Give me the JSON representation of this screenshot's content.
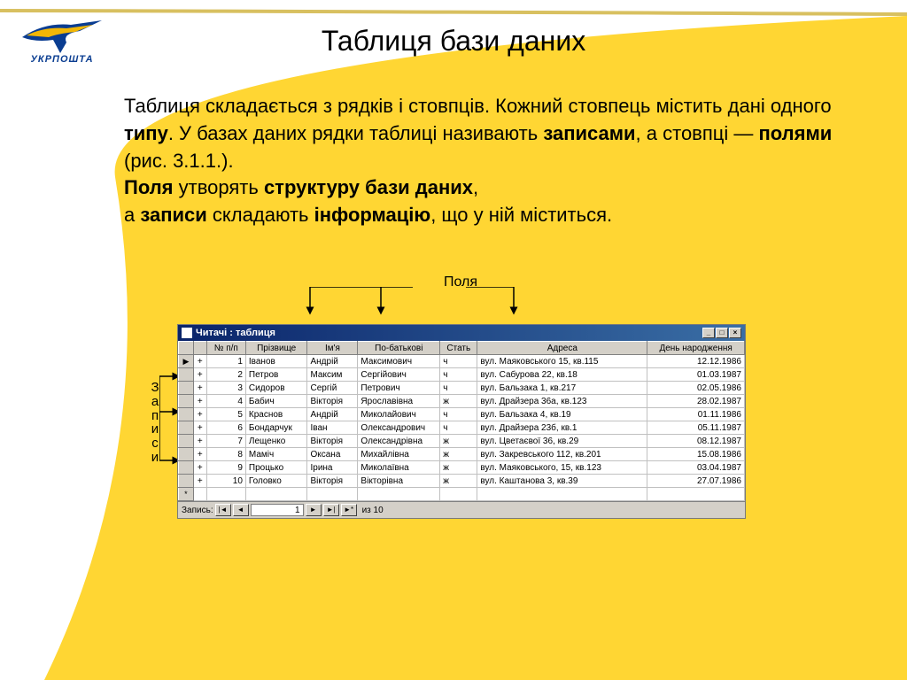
{
  "colors": {
    "yellow": "#ffd633",
    "blue_logo": "#0a3d91",
    "yellow_logo": "#f2b705",
    "titlebar_left": "#0a246a",
    "titlebar_right": "#3a6ea5",
    "window_bg": "#d4d0c8",
    "grid_border": "#c0c0c0"
  },
  "logo_text": "УКРПОШТА",
  "title": "Таблиця бази даних",
  "body": {
    "p1a": "Таблиця складається з рядків і стовпців. Кожний стовпець містить дані одного ",
    "p1b": "типу",
    "p1c": ". У базах даних рядки таблиці називають ",
    "p1d": "записами",
    "p1e": ", а стовпці — ",
    "p1f": "полями",
    "p1g": " (рис. 3.1.1.).",
    "p2a": "Поля",
    "p2b": " утворять ",
    "p2c": "структуру бази даних",
    "p2d": ",",
    "p3a": "а ",
    "p3b": "записи",
    "p3c": " складають ",
    "p3d": "інформацію",
    "p3e": ", що у ній міститься."
  },
  "labels": {
    "fields": "Поля",
    "records": "Записи"
  },
  "window": {
    "title": "Читачі : таблиця",
    "min": "_",
    "max": "□",
    "close": "×"
  },
  "columns": {
    "num": "№ п/п",
    "last": "Прізвище",
    "first": "Ім'я",
    "patronymic": "По-батькові",
    "sex": "Стать",
    "address": "Адреса",
    "birthday": "День народження"
  },
  "rows": [
    {
      "n": "1",
      "last": "Іванов",
      "first": "Андрій",
      "pat": "Максимович",
      "sex": "ч",
      "addr": "вул. Маяковського 15, кв.115",
      "bday": "12.12.1986"
    },
    {
      "n": "2",
      "last": "Петров",
      "first": "Максим",
      "pat": "Сергійович",
      "sex": "ч",
      "addr": "вул. Сабурова 22, кв.18",
      "bday": "01.03.1987"
    },
    {
      "n": "3",
      "last": "Сидоров",
      "first": "Сергій",
      "pat": "Петрович",
      "sex": "ч",
      "addr": "вул. Бальзака 1, кв.217",
      "bday": "02.05.1986"
    },
    {
      "n": "4",
      "last": "Бабич",
      "first": "Вікторія",
      "pat": "Ярославівна",
      "sex": "ж",
      "addr": "вул. Драйзера 36а, кв.123",
      "bday": "28.02.1987"
    },
    {
      "n": "5",
      "last": "Краснов",
      "first": "Андрій",
      "pat": "Миколайович",
      "sex": "ч",
      "addr": "вул. Бальзака 4, кв.19",
      "bday": "01.11.1986"
    },
    {
      "n": "6",
      "last": "Бондарчук",
      "first": "Іван",
      "pat": "Олександрович",
      "sex": "ч",
      "addr": "вул. Драйзера 23б, кв.1",
      "bday": "05.11.1987"
    },
    {
      "n": "7",
      "last": "Лещенко",
      "first": "Вікторія",
      "pat": "Олександрівна",
      "sex": "ж",
      "addr": "вул. Цветаєвої 36, кв.29",
      "bday": "08.12.1987"
    },
    {
      "n": "8",
      "last": "Маміч",
      "first": "Оксана",
      "pat": "Михайлівна",
      "sex": "ж",
      "addr": "вул. Закревського 112, кв.201",
      "bday": "15.08.1986"
    },
    {
      "n": "9",
      "last": "Процько",
      "first": "Ірина",
      "pat": "Миколаївна",
      "sex": "ж",
      "addr": "вул. Маяковського, 15, кв.123",
      "bday": "03.04.1987"
    },
    {
      "n": "10",
      "last": "Головко",
      "first": "Вікторія",
      "pat": "Вікторівна",
      "sex": "ж",
      "addr": "вул. Каштанова 3, кв.39",
      "bday": "27.07.1986"
    }
  ],
  "nav": {
    "label": "Запись:",
    "first": "|◄",
    "prev": "◄",
    "current": "1",
    "next": "►",
    "last": "►|",
    "new": "►*",
    "of": "из 10"
  },
  "selector_current": "▶",
  "selector_new": "*",
  "expand": "+"
}
